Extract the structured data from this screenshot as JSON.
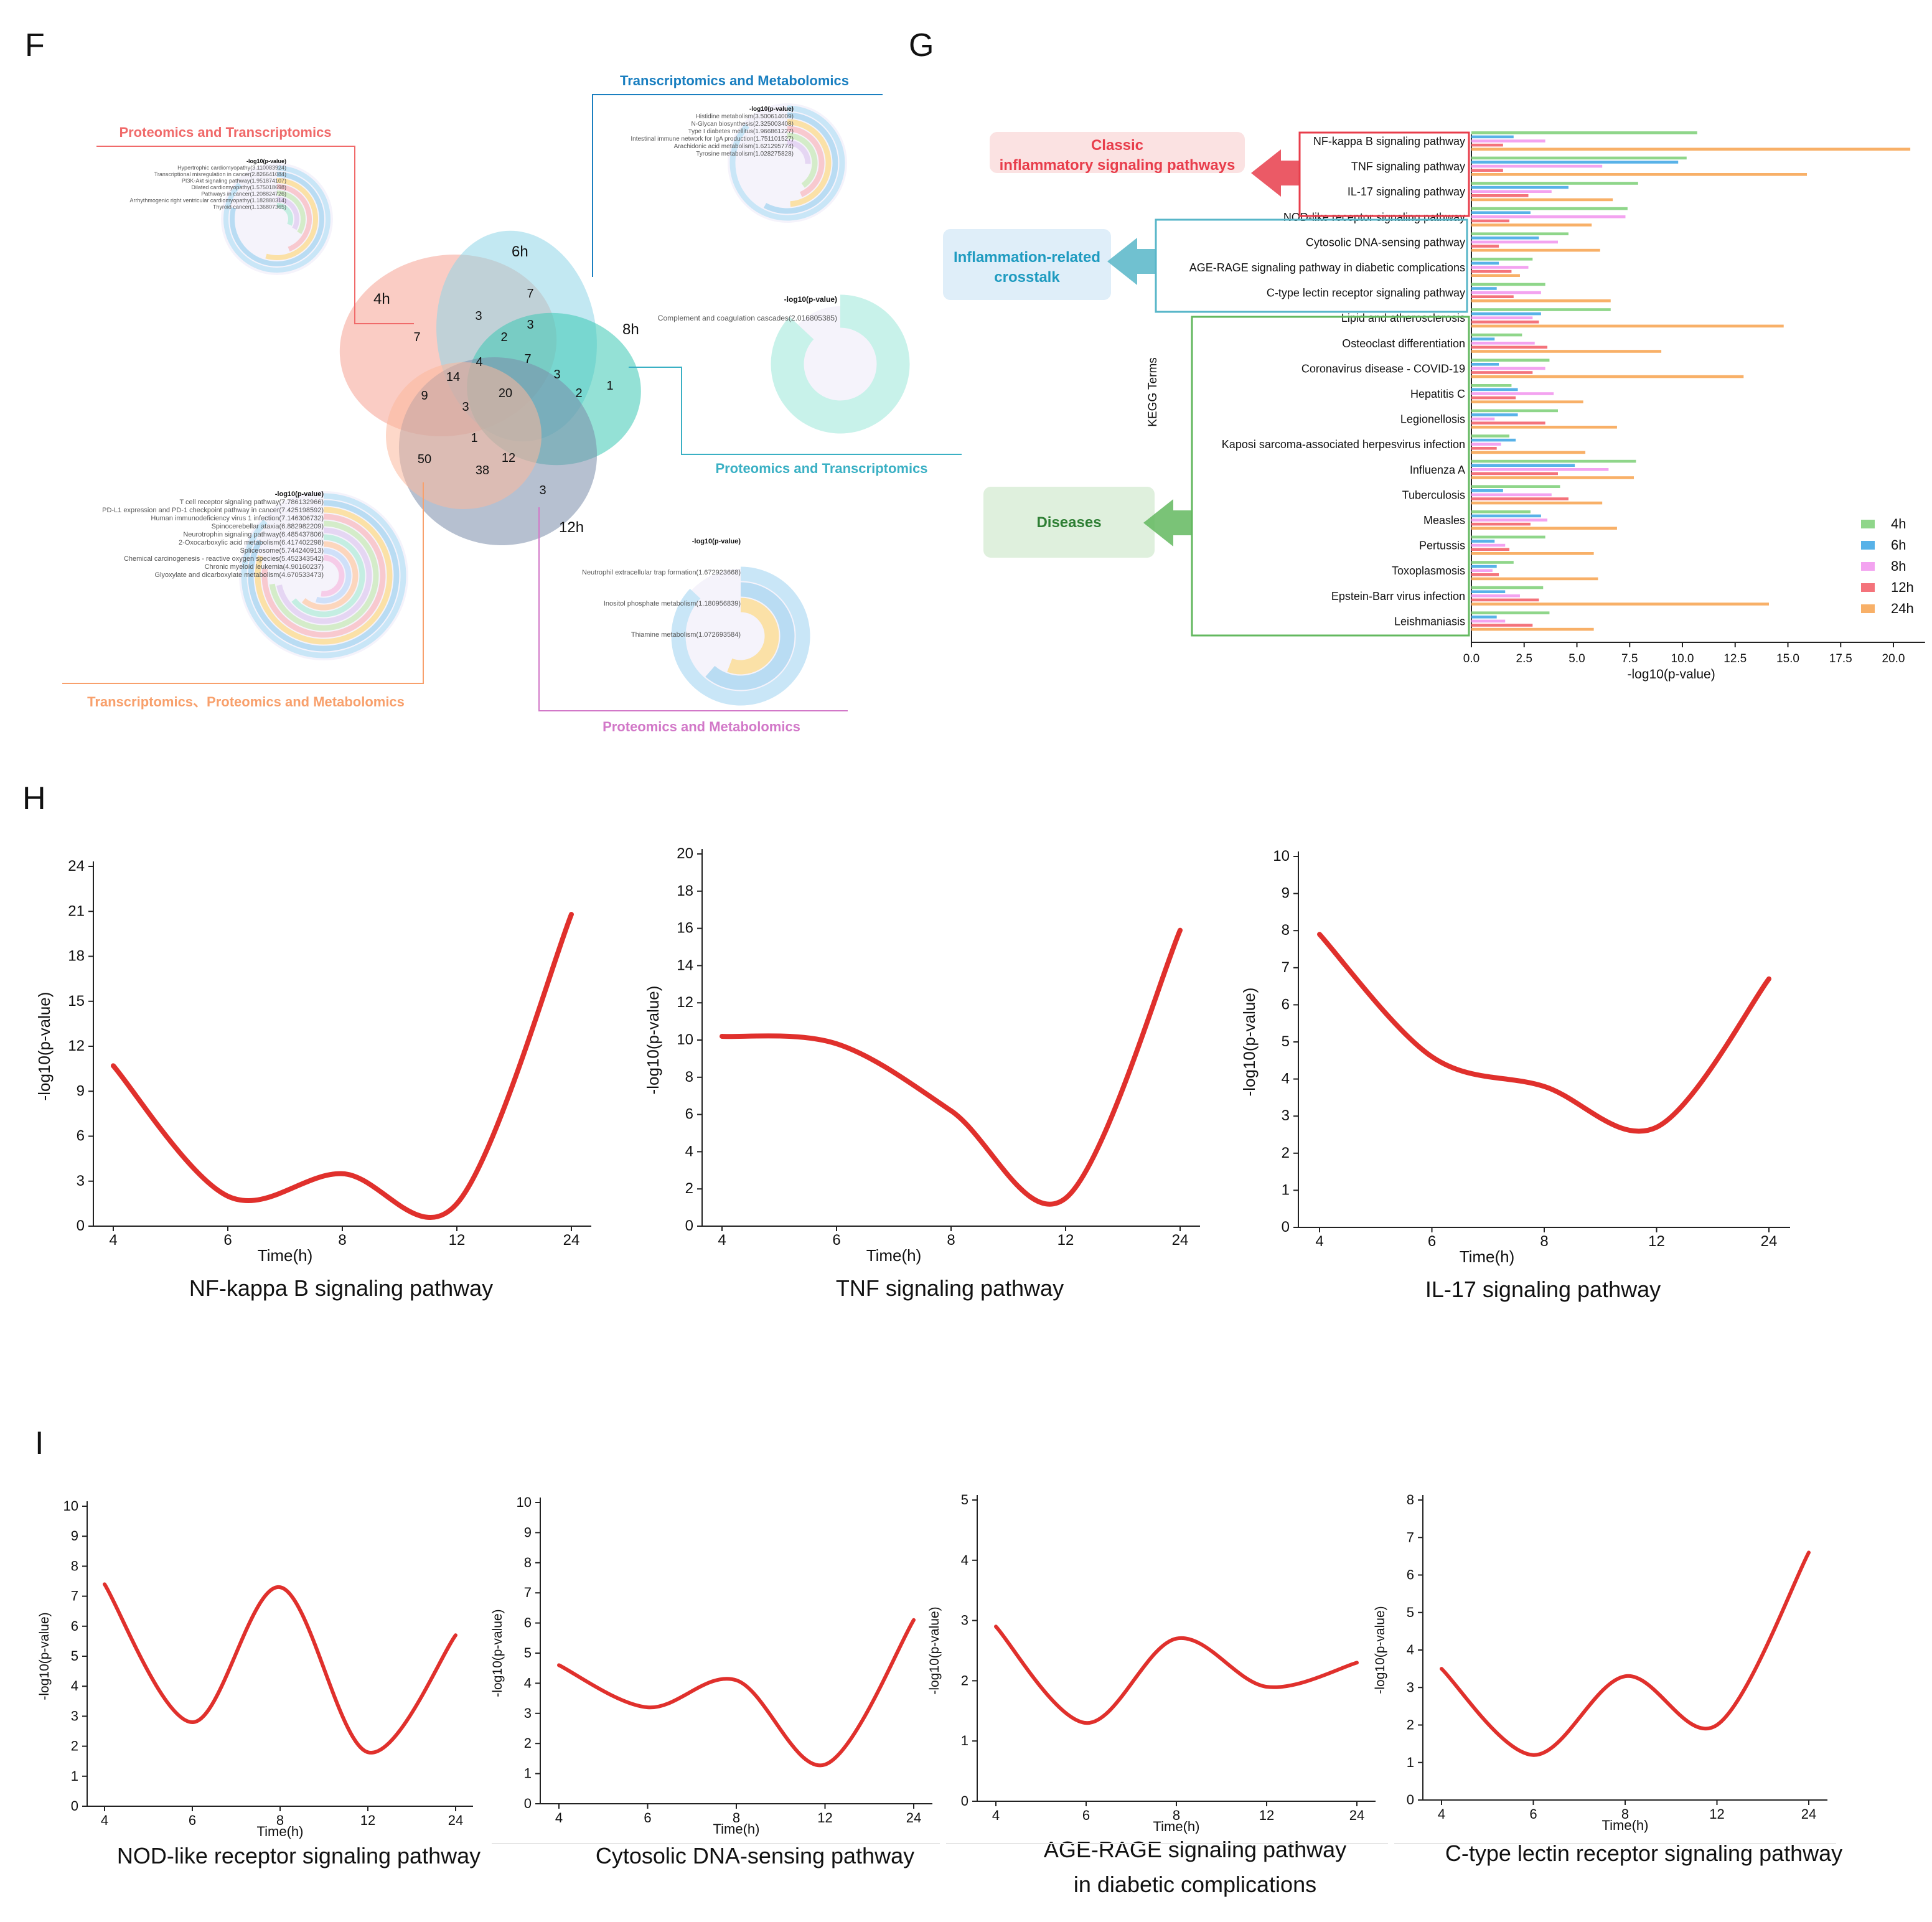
{
  "panels": {
    "F": "F",
    "G": "G",
    "H": "H",
    "I": "I"
  },
  "colors": {
    "h4": "#8fd68a",
    "h6": "#58b2e8",
    "h8": "#f3a3f0",
    "h12": "#f4737b",
    "h24": "#f8b068",
    "curve": "#e0302c",
    "venn_4h": "#f6a293",
    "venn_6h": "#8fd6e8",
    "venn_8h": "#3cc8b4",
    "venn_12h": "#7a8caa",
    "venn_24h": "#fbb89c"
  },
  "venn": {
    "sets": [
      "4h",
      "6h",
      "8h",
      "12h"
    ],
    "regions": {
      "only_4h": "7",
      "only_6h": "7",
      "only_8h": "1",
      "only_12h": "3",
      "r_4h_6h": "3",
      "r_6h_a": "2",
      "r_6h_b": "3",
      "r_6h_8h": "7",
      "r_8h_c": "3",
      "r_8h_d": "2",
      "r_mid_14": "14",
      "r_mid_4": "4",
      "r_mid_20": "20",
      "r_left_9": "9",
      "r_left_3": "3",
      "r_low_1": "1",
      "r_low_12": "12",
      "r_low_38": "38",
      "r_only_24": "50"
    },
    "callouts": {
      "pt": {
        "title": "Proteomics and Transcriptomics",
        "axis_title": "-log10(p-value)",
        "items": [
          "Hypertrophic cardiomyopathy(3.110083924)",
          "Transcriptional misregulation in cancer(2.826641084)",
          "PI3K-Akt signaling pathway(1.951874107)",
          "Dilated cardiomyopathy(1.575018698)",
          "Pathways in cancer(1.208824726)",
          "Arrhythmogenic right ventricular cardiomyopathy(1.182880314)",
          "Thyroid cancer(1.136807365)"
        ],
        "values": [
          3.110083924,
          2.826641084,
          1.951874107,
          1.575018698,
          1.208824726,
          1.182880314,
          1.136807365
        ]
      },
      "tm": {
        "title": "Transcriptomics and Metabolomics",
        "axis_title": "-log10(p-value)",
        "items": [
          "Histidine metabolism(3.500614009)",
          "N-Glycan biosynthesis(2.325003408)",
          "Type I diabetes mellitus(1.966861227)",
          "Intestinal immune network for IgA production(1.751101527)",
          "Arachidonic acid metabolism(1.621295774)",
          "Tyrosine metabolism(1.028275828)"
        ],
        "values": [
          3.500614009,
          2.325003408,
          1.966861227,
          1.751101527,
          1.621295774,
          1.028275828
        ]
      },
      "pt2": {
        "title": "Proteomics and Transcriptomics",
        "axis_title": "-log10(p-value)",
        "items": [
          "Complement and coagulation cascades(2.016805385)"
        ],
        "values": [
          2.016805385
        ]
      },
      "tpm": {
        "title": "Transcriptomics、Proteomics and Metabolomics",
        "axis_title": "-log10(p-value)",
        "items": [
          "T cell receptor signaling pathway(7.786132966)",
          "PD-L1 expression and PD-1 checkpoint pathway in cancer(7.425198592)",
          "Human immunodeficiency virus 1 infection(7.146306732)",
          "Spinocerebellar ataxia(6.882982209)",
          "Neurotrophin signaling pathway(6.485437806)",
          "2-Oxocarboxylic acid metabolism(6.417402298)",
          "Spliceosome(5.744240913)",
          "Chemical carcinogenesis - reactive oxygen species(5.452343542)",
          "Chronic myeloid leukemia(4.90160237)",
          "Glyoxylate and dicarboxylate metabolism(4.670533473)"
        ],
        "values": [
          7.786132966,
          7.425198592,
          7.146306732,
          6.882982209,
          6.485437806,
          6.417402298,
          5.744240913,
          5.452343542,
          4.90160237,
          4.670533473
        ]
      },
      "pm": {
        "title": "Proteomics and Metabolomics",
        "axis_title": "-log10(p-value)",
        "items": [
          "Neutrophil extracellular trap formation(1.672923668)",
          "Inositol phosphate metabolism(1.180956839)",
          "Thiamine metabolism(1.072693584)"
        ],
        "values": [
          1.672923668,
          1.180956839,
          1.072693584
        ]
      }
    }
  },
  "chart_data": [
    {
      "id": "G",
      "type": "bar",
      "orientation": "horizontal",
      "ylabel": "KEGG Terms",
      "xlabel": "-log10(p-value)",
      "xlim": [
        0,
        21.5
      ],
      "xticks": [
        "0.0",
        "2.5",
        "5.0",
        "7.5",
        "10.0",
        "12.5",
        "15.0",
        "17.5",
        "20.0"
      ],
      "legend_position": "right",
      "groups": [
        {
          "label": "Classic\ninflammatory signaling pathways",
          "first": 0,
          "last": 2
        },
        {
          "label": "Inflammation-related\ncrosstalk",
          "first": 3,
          "last": 6
        },
        {
          "label": "Diseases",
          "first": 7,
          "last": 19
        }
      ],
      "categories": [
        "NF-kappa B signaling pathway",
        "TNF signaling pathway",
        "IL-17 signaling pathway",
        "NOD-like receptor signaling pathway",
        "Cytosolic DNA-sensing pathway",
        "AGE-RAGE signaling pathway in diabetic complications",
        "C-type lectin receptor signaling pathway",
        "Lipid and atherosclerosis",
        "Osteoclast differentiation",
        "Coronavirus disease - COVID-19",
        "Hepatitis C",
        "Legionellosis",
        "Kaposi sarcoma-associated herpesvirus infection",
        "Influenza A",
        "Tuberculosis",
        "Measles",
        "Pertussis",
        "Toxoplasmosis",
        "Epstein-Barr virus infection",
        "Leishmaniasis"
      ],
      "series": [
        {
          "name": "4h",
          "values": [
            10.7,
            10.2,
            7.9,
            7.4,
            4.6,
            2.9,
            3.5,
            6.6,
            2.4,
            3.7,
            1.9,
            4.1,
            1.8,
            7.8,
            4.2,
            2.8,
            3.5,
            2.0,
            3.4,
            3.7
          ]
        },
        {
          "name": "6h",
          "values": [
            2.0,
            9.8,
            4.6,
            2.8,
            3.2,
            1.3,
            1.2,
            3.3,
            1.1,
            1.3,
            2.2,
            2.2,
            2.1,
            4.9,
            1.5,
            3.3,
            1.1,
            1.2,
            1.6,
            1.2
          ]
        },
        {
          "name": "8h",
          "values": [
            3.5,
            6.2,
            3.8,
            7.3,
            4.1,
            2.7,
            3.3,
            2.9,
            3.0,
            3.5,
            3.9,
            1.1,
            1.4,
            6.5,
            3.8,
            3.6,
            1.6,
            1.0,
            2.3,
            1.6
          ]
        },
        {
          "name": "12h",
          "values": [
            1.5,
            1.5,
            2.7,
            1.8,
            1.3,
            1.9,
            2.0,
            3.2,
            3.6,
            2.9,
            2.1,
            3.5,
            1.2,
            4.1,
            4.6,
            2.8,
            1.8,
            1.3,
            3.2,
            2.9
          ]
        },
        {
          "name": "24h",
          "values": [
            20.8,
            15.9,
            6.7,
            5.7,
            6.1,
            2.3,
            6.6,
            14.8,
            9.0,
            12.9,
            5.3,
            6.9,
            5.4,
            7.7,
            6.2,
            6.9,
            5.8,
            6.0,
            14.1,
            5.8
          ]
        }
      ]
    },
    {
      "id": "H1",
      "type": "line",
      "title": "NF-kappa B signaling pathway",
      "xlabel": "Time(h)",
      "ylabel": "-log10(p-value)",
      "x": [
        "4",
        "6",
        "8",
        "12",
        "24"
      ],
      "ylim": [
        0,
        24
      ],
      "yticks": [
        "0",
        "3",
        "6",
        "9",
        "12",
        "15",
        "18",
        "21",
        "24"
      ],
      "values": [
        10.7,
        2.0,
        3.5,
        1.5,
        20.8
      ]
    },
    {
      "id": "H2",
      "type": "line",
      "title": "TNF signaling pathway",
      "xlabel": "Time(h)",
      "ylabel": "-log10(p-value)",
      "x": [
        "4",
        "6",
        "8",
        "12",
        "24"
      ],
      "ylim": [
        0,
        20
      ],
      "yticks": [
        "0",
        "2",
        "4",
        "6",
        "8",
        "10",
        "12",
        "14",
        "16",
        "18",
        "20"
      ],
      "values": [
        10.2,
        9.8,
        6.2,
        1.5,
        15.9
      ]
    },
    {
      "id": "H3",
      "type": "line",
      "title": "IL-17 signaling pathway",
      "xlabel": "Time(h)",
      "ylabel": "-log10(p-value)",
      "x": [
        "4",
        "6",
        "8",
        "12",
        "24"
      ],
      "ylim": [
        0,
        10
      ],
      "yticks": [
        "0",
        "1",
        "2",
        "3",
        "4",
        "5",
        "6",
        "7",
        "8",
        "9",
        "10"
      ],
      "values": [
        7.9,
        4.6,
        3.8,
        2.7,
        6.7
      ]
    },
    {
      "id": "I1",
      "type": "line",
      "title": "NOD-like receptor signaling pathway",
      "xlabel": "Time(h)",
      "ylabel": "-log10(p-value)",
      "x": [
        "4",
        "6",
        "8",
        "12",
        "24"
      ],
      "ylim": [
        0,
        10
      ],
      "yticks": [
        "0",
        "1",
        "2",
        "3",
        "4",
        "5",
        "6",
        "7",
        "8",
        "9",
        "10"
      ],
      "values": [
        7.4,
        2.8,
        7.3,
        1.8,
        5.7
      ]
    },
    {
      "id": "I2",
      "type": "line",
      "title": "Cytosolic DNA-sensing pathway",
      "xlabel": "Time(h)",
      "ylabel": "-log10(p-value)",
      "x": [
        "4",
        "6",
        "8",
        "12",
        "24"
      ],
      "ylim": [
        0,
        10
      ],
      "yticks": [
        "0",
        "1",
        "2",
        "3",
        "4",
        "5",
        "6",
        "7",
        "8",
        "9",
        "10"
      ],
      "values": [
        4.6,
        3.2,
        4.1,
        1.3,
        6.1
      ]
    },
    {
      "id": "I3",
      "type": "line",
      "title": "AGE-RAGE signaling pathway\nin diabetic complications",
      "xlabel": "Time(h)",
      "ylabel": "-log10(p-value)",
      "x": [
        "4",
        "6",
        "8",
        "12",
        "24"
      ],
      "ylim": [
        0,
        5
      ],
      "yticks": [
        "0",
        "1",
        "2",
        "3",
        "4",
        "5"
      ],
      "values": [
        2.9,
        1.3,
        2.7,
        1.9,
        2.3
      ]
    },
    {
      "id": "I4",
      "type": "line",
      "title": "C-type lectin receptor signaling pathway",
      "xlabel": "Time(h)",
      "ylabel": "-log10(p-value)",
      "x": [
        "4",
        "6",
        "8",
        "12",
        "24"
      ],
      "ylim": [
        0,
        8
      ],
      "yticks": [
        "0",
        "1",
        "2",
        "3",
        "4",
        "5",
        "6",
        "7",
        "8"
      ],
      "values": [
        3.5,
        1.2,
        3.3,
        2.0,
        6.6
      ]
    }
  ]
}
